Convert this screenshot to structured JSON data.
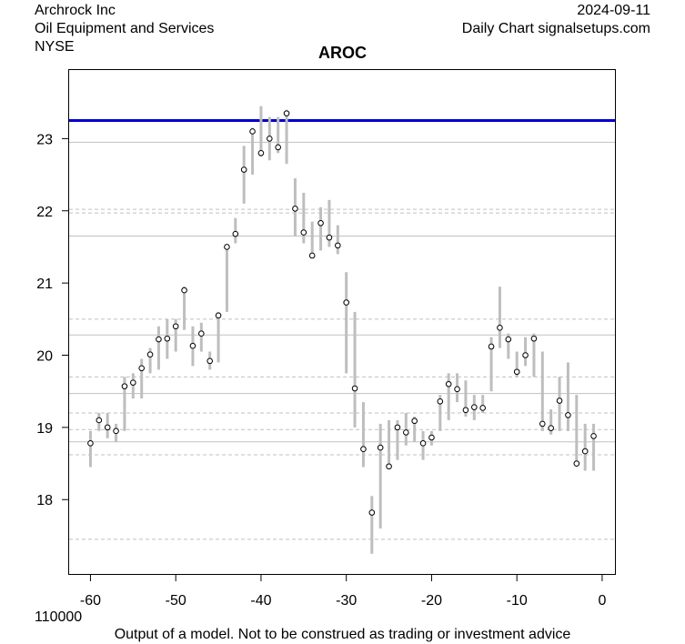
{
  "header": {
    "company": "Archrock Inc",
    "sector": "Oil Equipment and Services",
    "exchange": "NYSE",
    "date": "2024-09-11",
    "source": "Daily Chart signalsetups.com"
  },
  "footer": {
    "volume_label": "110000",
    "disclaimer": "Output of a model. Not to be construed as trading or investment advice"
  },
  "colors": {
    "bar": "#bebebe",
    "reference_line": "#0000cc",
    "grid_solid": "#c0c0c0",
    "grid_dashed": "#c0c0c0"
  },
  "chart_data": {
    "type": "range-bar",
    "title": "AROC",
    "xlabel": "",
    "ylabel": "",
    "xlim": [
      -62.5,
      1.5
    ],
    "ylim": [
      16.97,
      23.95
    ],
    "x_ticks": [
      -60,
      -50,
      -40,
      -30,
      -20,
      -10,
      0
    ],
    "y_ticks": [
      18,
      19,
      20,
      21,
      22,
      23
    ],
    "reference_line": 23.25,
    "solid_levels": [
      22.95,
      21.65,
      20.28,
      19.47,
      18.8
    ],
    "dashed_levels": [
      22.02,
      21.97,
      20.5,
      19.7,
      19.2,
      18.97,
      18.62,
      17.45
    ],
    "x": [
      -60,
      -59,
      -58,
      -57,
      -56,
      -55,
      -54,
      -53,
      -52,
      -51,
      -50,
      -49,
      -48,
      -47,
      -46,
      -45,
      -44,
      -43,
      -42,
      -41,
      -40,
      -39,
      -38,
      -37,
      -36,
      -35,
      -34,
      -33,
      -32,
      -31,
      -30,
      -29,
      -28,
      -27,
      -26,
      -25,
      -24,
      -23,
      -22,
      -21,
      -20,
      -19,
      -18,
      -17,
      -16,
      -15,
      -14,
      -13,
      -12,
      -11,
      -10,
      -9,
      -8,
      -7,
      -6,
      -5,
      -4,
      -3,
      -2,
      -1
    ],
    "high": [
      18.95,
      19.2,
      19.2,
      19.05,
      19.7,
      19.75,
      19.95,
      20.1,
      20.4,
      20.5,
      20.5,
      20.95,
      20.4,
      20.45,
      20.05,
      20.6,
      21.5,
      21.9,
      22.9,
      23.15,
      23.45,
      23.3,
      23.3,
      23.4,
      22.45,
      22.25,
      21.85,
      22.05,
      22.15,
      21.8,
      21.15,
      20.6,
      19.35,
      18.05,
      19.05,
      19.1,
      19.1,
      19.2,
      19.15,
      18.95,
      18.95,
      19.45,
      19.75,
      19.75,
      19.65,
      19.45,
      19.45,
      20.25,
      20.95,
      20.3,
      20.05,
      20.25,
      20.3,
      20.05,
      19.25,
      19.7,
      19.9,
      19.45,
      19.05,
      19.05
    ],
    "low": [
      18.45,
      18.95,
      18.85,
      18.8,
      18.95,
      19.4,
      19.4,
      19.75,
      19.8,
      19.95,
      20.05,
      20.35,
      19.85,
      20.05,
      19.8,
      19.9,
      20.6,
      21.55,
      22.1,
      22.5,
      22.75,
      22.7,
      22.8,
      22.65,
      21.65,
      21.55,
      21.35,
      21.45,
      21.5,
      21.4,
      19.75,
      19,
      18.45,
      17.25,
      17.6,
      18.45,
      18.55,
      18.75,
      18.8,
      18.55,
      18.75,
      18.95,
      19.1,
      19.35,
      19.15,
      19.1,
      19.2,
      19.5,
      20.1,
      19.95,
      19.7,
      19.85,
      19.7,
      18.95,
      18.9,
      18.95,
      18.95,
      18.45,
      18.4,
      18.4
    ],
    "close": [
      18.78,
      19.1,
      19.0,
      18.95,
      19.57,
      19.62,
      19.82,
      20.01,
      20.22,
      20.23,
      20.4,
      20.9,
      20.13,
      20.3,
      19.92,
      20.55,
      21.5,
      21.68,
      22.57,
      23.1,
      22.8,
      23.0,
      22.88,
      23.35,
      22.03,
      21.7,
      21.38,
      21.83,
      21.63,
      21.52,
      20.73,
      19.54,
      18.7,
      17.82,
      18.72,
      18.46,
      19.0,
      18.93,
      19.09,
      18.78,
      18.86,
      19.36,
      19.6,
      19.53,
      19.24,
      19.28,
      19.27,
      20.12,
      20.38,
      20.22,
      19.77,
      20.0,
      20.23,
      19.05,
      18.99,
      19.37,
      19.17,
      18.5,
      18.67,
      18.88
    ]
  }
}
